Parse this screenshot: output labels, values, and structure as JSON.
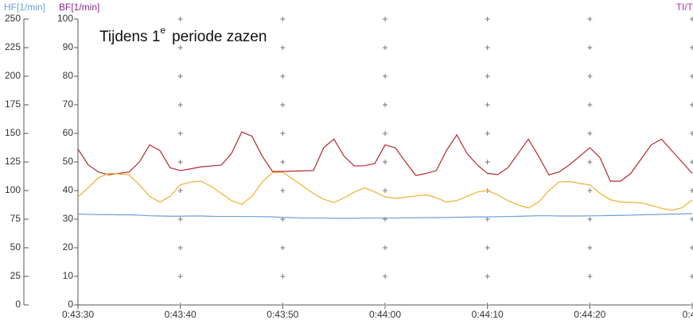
{
  "chart_data": {
    "type": "line",
    "ylabel": "BF[1/min]",
    "y2label": "HF[1/min]",
    "y3label": "TI/T",
    "annotation": [
      "Tijdens 1",
      "e",
      "periode zazen"
    ],
    "x": [
      2610,
      2611,
      2612,
      2613,
      2614,
      2615,
      2616,
      2617,
      2618,
      2619,
      2620,
      2621,
      2622,
      2623,
      2624,
      2625,
      2626,
      2627,
      2628,
      2629,
      2630,
      2631,
      2632,
      2633,
      2634,
      2635,
      2636,
      2637,
      2638,
      2639,
      2640,
      2641,
      2642,
      2643,
      2644,
      2645,
      2646,
      2647,
      2648,
      2649,
      2650,
      2651,
      2652,
      2653,
      2654,
      2655,
      2656,
      2657,
      2658,
      2659,
      2660,
      2661,
      2662,
      2663,
      2664,
      2665,
      2666,
      2667,
      2668,
      2669,
      2670
    ],
    "xlim": [
      2610,
      2670
    ],
    "xticks": [
      {
        "value": 2610,
        "label": "0:43:30"
      },
      {
        "value": 2620,
        "label": "0:43:40"
      },
      {
        "value": 2630,
        "label": "0:43:50"
      },
      {
        "value": 2640,
        "label": "0:44:00"
      },
      {
        "value": 2650,
        "label": "0:44:10"
      },
      {
        "value": 2660,
        "label": "0:44:20"
      },
      {
        "value": 2670,
        "label": "0:4"
      }
    ],
    "ylim": [
      0,
      100
    ],
    "yticks": [
      0,
      10,
      20,
      30,
      40,
      50,
      60,
      70,
      80,
      90,
      100
    ],
    "y2lim": [
      0,
      250
    ],
    "y2ticks": [
      0,
      25,
      50,
      75,
      100,
      125,
      150,
      175,
      200,
      225,
      250
    ],
    "grid": true,
    "series": [
      {
        "color": "#b3282e",
        "values": [
          54.5,
          49,
          46.5,
          45.5,
          46,
          46.5,
          50,
          56,
          54,
          48,
          47,
          47.6,
          48.3,
          48.6,
          48.9,
          53,
          60.5,
          59,
          52,
          46.7,
          46.7,
          46.8,
          46.9,
          47,
          55,
          58,
          52,
          48.6,
          48.7,
          49.5,
          56,
          55,
          50,
          45.3,
          46,
          47,
          54,
          59.5,
          53,
          49,
          46,
          45.6,
          48,
          53,
          58,
          52,
          45.5,
          46.5,
          49,
          52,
          55,
          51.5,
          43.3,
          43.3,
          46,
          51,
          56,
          58,
          54,
          50,
          46
        ]
      },
      {
        "color": "#f0b032",
        "values": [
          37.8,
          41,
          44.5,
          46,
          45.8,
          45.5,
          42,
          38,
          36,
          38,
          42,
          43,
          43.3,
          41.5,
          39,
          36.5,
          35.2,
          38,
          43,
          46.3,
          46.4,
          44,
          41.5,
          39,
          37,
          35.8,
          37.5,
          39.5,
          41,
          39.5,
          37.8,
          37.3,
          37.7,
          38.1,
          38.5,
          37.5,
          36,
          36.5,
          38,
          39.5,
          40,
          38.5,
          36.5,
          35,
          33.9,
          36,
          40,
          43,
          43.2,
          42.5,
          42,
          39,
          36.8,
          36,
          35.9,
          35.7,
          34.8,
          33.8,
          33.1,
          34,
          36.7
        ]
      },
      {
        "color": "#6c9fd8",
        "axis": "y2",
        "values": [
          79.5,
          79.2,
          79,
          79,
          78.8,
          78.8,
          78.5,
          78,
          77.8,
          77.6,
          77.6,
          77.8,
          77.8,
          77.5,
          77.4,
          77.4,
          77.3,
          77.3,
          77.2,
          77,
          76.6,
          76.3,
          76,
          76,
          76,
          75.8,
          75.8,
          75.8,
          76,
          76,
          76,
          76,
          76.2,
          76.2,
          76.3,
          76.4,
          76.5,
          76.7,
          76.8,
          77,
          77,
          77.2,
          77.3,
          77.5,
          77.8,
          78,
          78,
          77.8,
          77.8,
          77.8,
          77.9,
          78,
          78.2,
          78.3,
          78.5,
          78.8,
          79,
          79.2,
          79.4,
          79.6,
          79.8
        ]
      }
    ]
  }
}
